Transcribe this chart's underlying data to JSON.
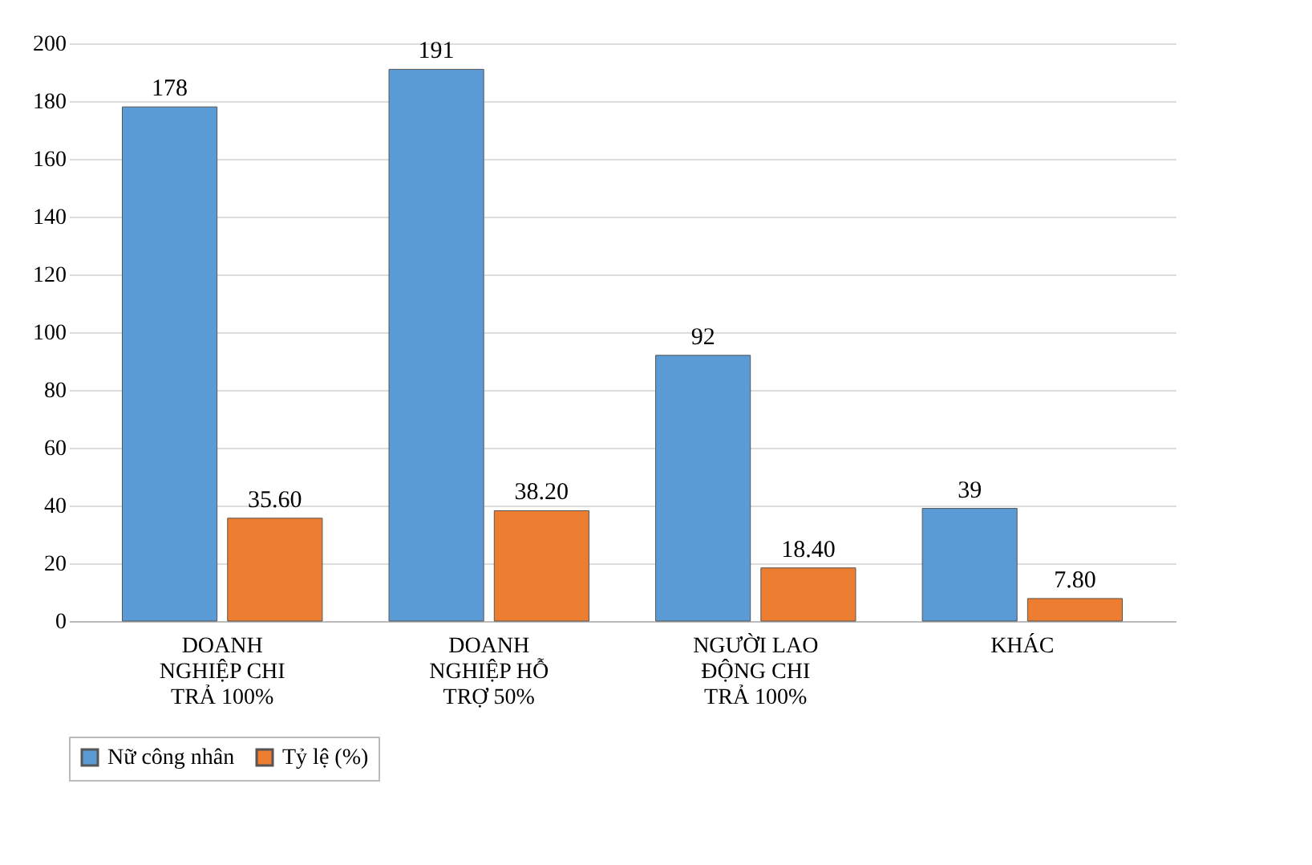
{
  "chart_data": {
    "type": "bar",
    "categories": [
      "DOANH NGHIỆP CHI TRẢ 100%",
      "DOANH NGHIỆP HỖ TRỢ 50%",
      "NGƯỜI LAO ĐỘNG CHI TRẢ 100%",
      "KHÁC"
    ],
    "series": [
      {
        "name": "Nữ công nhân",
        "color": "#5b9bd5",
        "values": [
          178,
          191,
          92,
          39
        ],
        "value_labels": [
          "178",
          "191",
          "92",
          "39"
        ]
      },
      {
        "name": "Tỷ lệ (%)",
        "color": "#ed7d31",
        "values": [
          35.6,
          38.2,
          18.4,
          7.8
        ],
        "value_labels": [
          "35.60",
          "38.20",
          "18.40",
          "7.80"
        ]
      }
    ],
    "ylim": [
      0,
      200
    ],
    "yticks": [
      0,
      20,
      40,
      60,
      80,
      100,
      120,
      140,
      160,
      180,
      200
    ],
    "grid": "y",
    "legend": "bottom"
  }
}
